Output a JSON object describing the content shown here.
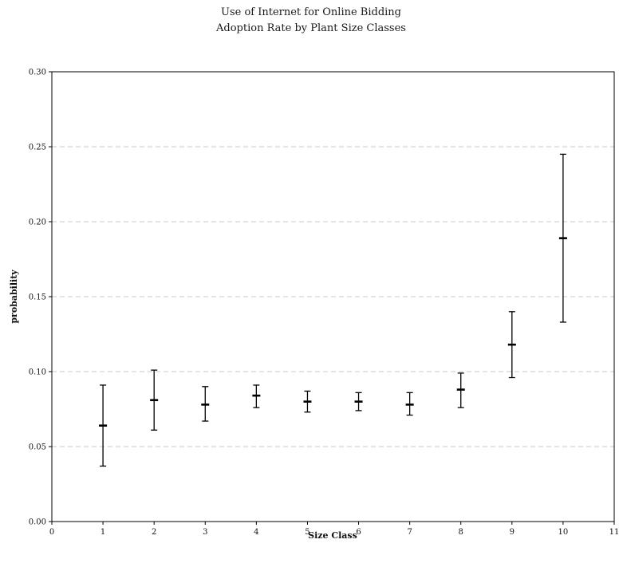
{
  "chart_data": {
    "type": "scatter",
    "title": "Use of  Internet for Online Bidding",
    "subtitle": "Adoption Rate by Plant Size Classes",
    "xlabel": "Size Class",
    "ylabel": "probability",
    "xlim": [
      0,
      11
    ],
    "ylim": [
      0,
      0.3
    ],
    "x_ticks": [
      "0",
      "1",
      "2",
      "3",
      "4",
      "5",
      "6",
      "7",
      "8",
      "9",
      "10",
      "11"
    ],
    "y_ticks": [
      "0.00",
      "0.05",
      "0.10",
      "0.15",
      "0.20",
      "0.25",
      "0.30"
    ],
    "grid": "horizontal dashed",
    "series": [
      {
        "x": [
          1,
          2,
          3,
          4,
          5,
          6,
          7,
          8,
          9,
          10
        ],
        "y": [
          0.064,
          0.081,
          0.078,
          0.084,
          0.08,
          0.08,
          0.078,
          0.088,
          0.118,
          0.189
        ],
        "lower": [
          0.037,
          0.061,
          0.067,
          0.076,
          0.073,
          0.074,
          0.071,
          0.076,
          0.096,
          0.133
        ],
        "upper": [
          0.091,
          0.101,
          0.09,
          0.091,
          0.087,
          0.086,
          0.086,
          0.099,
          0.14,
          0.245
        ]
      }
    ]
  }
}
